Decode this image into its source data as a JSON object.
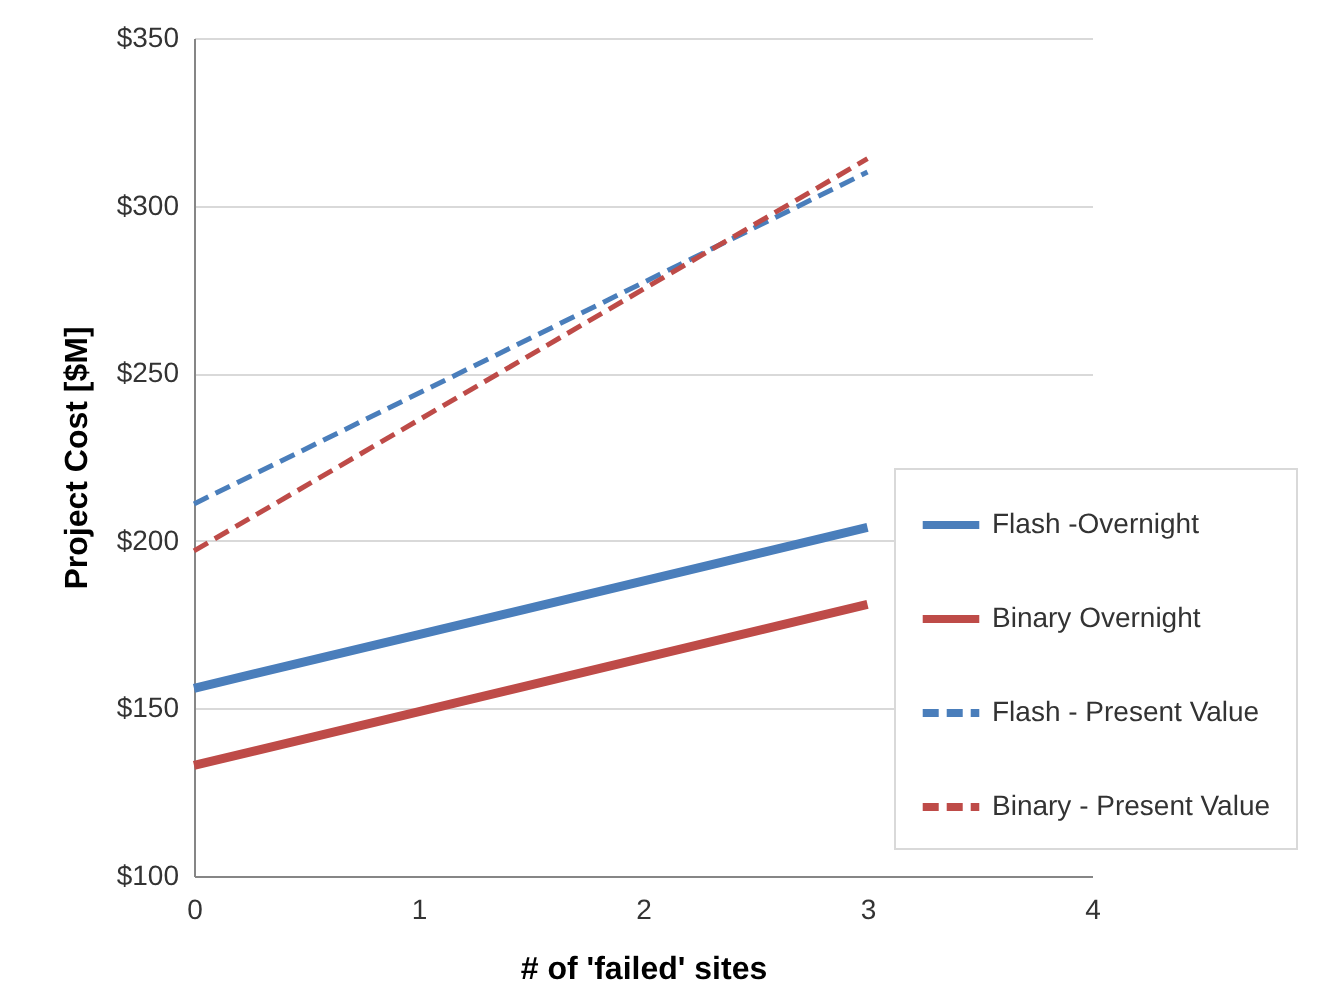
{
  "chart_data": {
    "type": "line",
    "xlabel": "# of 'failed' sites",
    "ylabel": "Project Cost [$M]",
    "xlim": [
      0,
      4
    ],
    "xticks": [
      0,
      1,
      2,
      3,
      4
    ],
    "ylim": [
      100,
      350
    ],
    "yticks": [
      {
        "value": 100,
        "label": "$100"
      },
      {
        "value": 150,
        "label": "$150"
      },
      {
        "value": 200,
        "label": "$200"
      },
      {
        "value": 250,
        "label": "$250"
      },
      {
        "value": 300,
        "label": "$300"
      },
      {
        "value": 350,
        "label": "$350"
      }
    ],
    "grid": "y",
    "legend": "right",
    "x": [
      0,
      3
    ],
    "series": [
      {
        "name": "Flash -Overnight",
        "color": "#4a7ebb",
        "line_style": "solid",
        "values": [
          156,
          204
        ]
      },
      {
        "name": "Binary Overnight",
        "color": "#be4b48",
        "line_style": "solid",
        "values": [
          133,
          181
        ]
      },
      {
        "name": "Flash - Present Value",
        "color": "#4a7ebb",
        "line_style": "dashed",
        "values": [
          211,
          310
        ]
      },
      {
        "name": "Binary - Present Value",
        "color": "#be4b48",
        "line_style": "dashed",
        "values": [
          197,
          314
        ]
      }
    ]
  }
}
